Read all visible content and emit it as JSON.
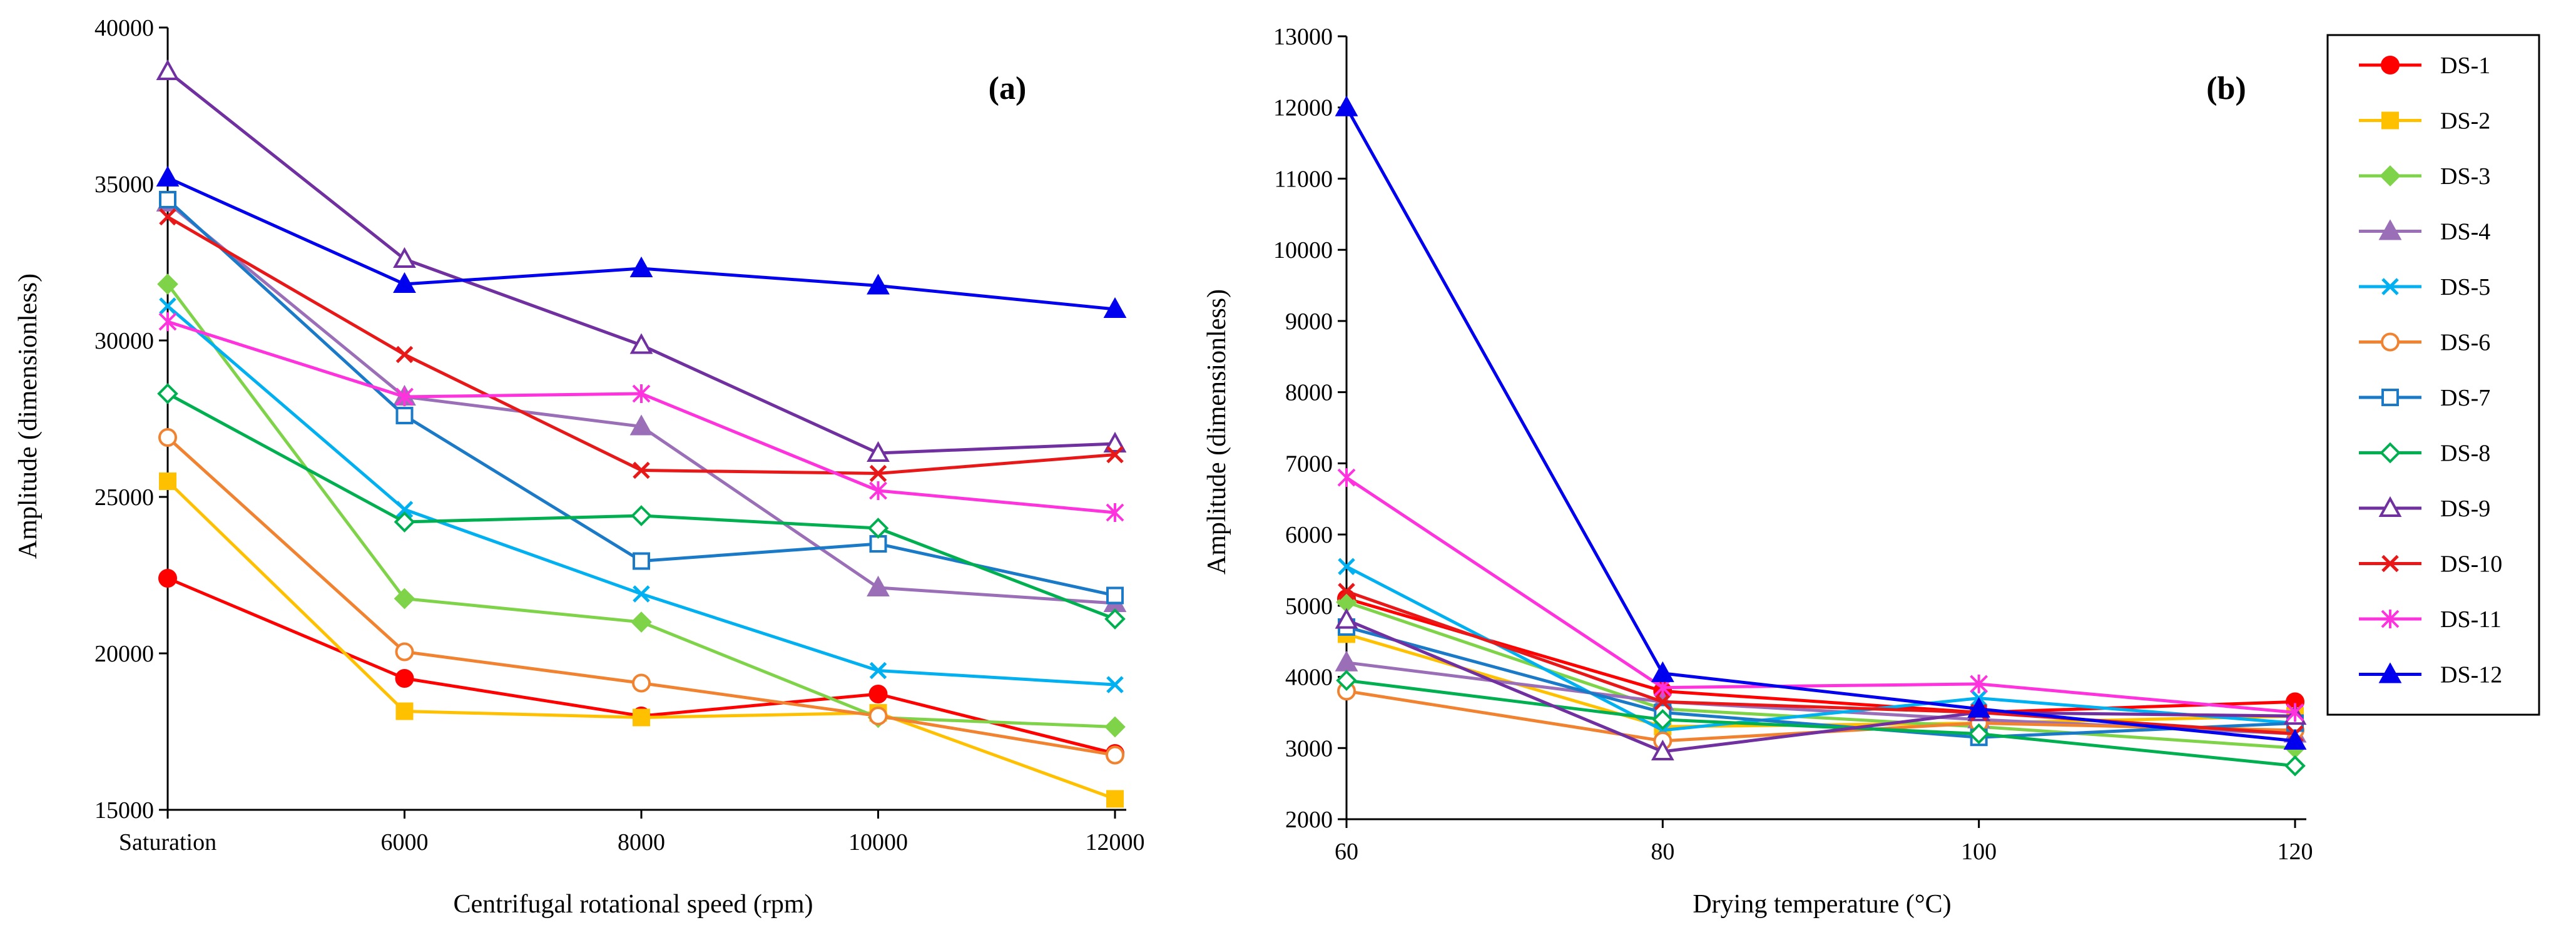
{
  "chart_data": [
    {
      "type": "line",
      "panel_label": "(a)",
      "xlabel": "Centrifugal rotational speed (rpm)",
      "ylabel": "Amplitude (dimensionless)",
      "categories": [
        "Saturation",
        "6000",
        "8000",
        "10000",
        "12000"
      ],
      "ylim": [
        15000,
        40000
      ],
      "yticks": [
        15000,
        20000,
        25000,
        30000,
        35000,
        40000
      ],
      "series": [
        {
          "name": "DS-1",
          "values": [
            22400,
            19200,
            18000,
            18700,
            16800
          ]
        },
        {
          "name": "DS-2",
          "values": [
            25500,
            18150,
            17950,
            18100,
            15350
          ]
        },
        {
          "name": "DS-3",
          "values": [
            31800,
            21750,
            21000,
            17950,
            17650
          ]
        },
        {
          "name": "DS-4",
          "values": [
            34400,
            28200,
            27250,
            22100,
            21600
          ]
        },
        {
          "name": "DS-5",
          "values": [
            31100,
            24600,
            21900,
            19450,
            19000
          ]
        },
        {
          "name": "DS-6",
          "values": [
            26900,
            20050,
            19050,
            18000,
            16750
          ]
        },
        {
          "name": "DS-7",
          "values": [
            34500,
            27600,
            22950,
            23500,
            21850
          ]
        },
        {
          "name": "DS-8",
          "values": [
            28300,
            24200,
            24400,
            24000,
            21100
          ]
        },
        {
          "name": "DS-9",
          "values": [
            38600,
            32600,
            29850,
            26400,
            26700
          ]
        },
        {
          "name": "DS-10",
          "values": [
            33950,
            29550,
            25850,
            25750,
            26350
          ]
        },
        {
          "name": "DS-11",
          "values": [
            30600,
            28200,
            28300,
            25200,
            24500
          ]
        },
        {
          "name": "DS-12",
          "values": [
            35200,
            31800,
            32300,
            31750,
            31000
          ]
        }
      ]
    },
    {
      "type": "line",
      "panel_label": "(b)",
      "xlabel": "Drying temperature (°C)",
      "ylabel": "Amplitude (dimensionless)",
      "x": [
        60,
        80,
        100,
        120
      ],
      "xlim": [
        60,
        120
      ],
      "xticks": [
        60,
        80,
        100,
        120
      ],
      "ylim": [
        2000,
        13000
      ],
      "yticks": [
        2000,
        3000,
        4000,
        5000,
        6000,
        7000,
        8000,
        9000,
        10000,
        11000,
        12000,
        13000
      ],
      "legend_position": "right",
      "series": [
        {
          "name": "DS-1",
          "values": [
            5100,
            3800,
            3500,
            3650
          ]
        },
        {
          "name": "DS-2",
          "values": [
            4600,
            3300,
            3350,
            3450
          ]
        },
        {
          "name": "DS-3",
          "values": [
            5050,
            3550,
            3300,
            3000
          ]
        },
        {
          "name": "DS-4",
          "values": [
            4200,
            3650,
            3400,
            3200
          ]
        },
        {
          "name": "DS-5",
          "values": [
            5550,
            3250,
            3700,
            3350
          ]
        },
        {
          "name": "DS-6",
          "values": [
            3800,
            3100,
            3350,
            3250
          ]
        },
        {
          "name": "DS-7",
          "values": [
            4700,
            3500,
            3150,
            3350
          ]
        },
        {
          "name": "DS-8",
          "values": [
            3950,
            3400,
            3200,
            2750
          ]
        },
        {
          "name": "DS-9",
          "values": [
            4800,
            2950,
            3500,
            3450
          ]
        },
        {
          "name": "DS-10",
          "values": [
            5200,
            3650,
            3500,
            3200
          ]
        },
        {
          "name": "DS-11",
          "values": [
            6800,
            3850,
            3900,
            3500
          ]
        },
        {
          "name": "DS-12",
          "values": [
            12000,
            4050,
            3550,
            3100
          ]
        }
      ]
    }
  ],
  "series_styles": [
    {
      "name": "DS-1",
      "color": "#ff0000",
      "marker": "circle-filled"
    },
    {
      "name": "DS-2",
      "color": "#ffc000",
      "marker": "square-filled"
    },
    {
      "name": "DS-3",
      "color": "#7ed348",
      "marker": "diamond-filled"
    },
    {
      "name": "DS-4",
      "color": "#9b6fb8",
      "marker": "triangle-filled"
    },
    {
      "name": "DS-5",
      "color": "#00b0f0",
      "marker": "x"
    },
    {
      "name": "DS-6",
      "color": "#f08230",
      "marker": "circle-open"
    },
    {
      "name": "DS-7",
      "color": "#1a7ac8",
      "marker": "square-open"
    },
    {
      "name": "DS-8",
      "color": "#00b050",
      "marker": "diamond-open"
    },
    {
      "name": "DS-9",
      "color": "#7030a0",
      "marker": "triangle-open"
    },
    {
      "name": "DS-10",
      "color": "#e81818",
      "marker": "x"
    },
    {
      "name": "DS-11",
      "color": "#ff33dd",
      "marker": "star"
    },
    {
      "name": "DS-12",
      "color": "#0000ee",
      "marker": "triangle-filled"
    }
  ]
}
